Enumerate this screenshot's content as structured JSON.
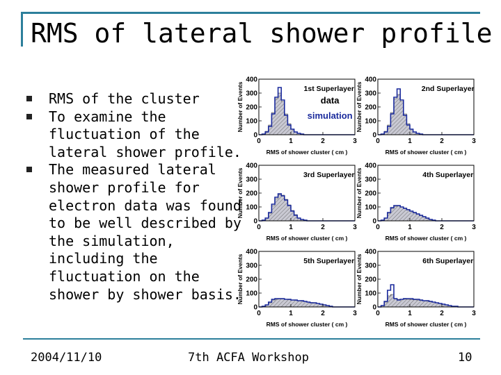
{
  "slide": {
    "title": "RMS of lateral shower profile",
    "bullets": [
      "RMS of the cluster",
      "To examine the fluctuation of the lateral shower profile.",
      "The measured lateral shower profile for electron data was found to be well described by the simulation, including the fluctuation on the shower by shower basis."
    ],
    "footer": {
      "date": "2004/11/10",
      "center": "7th ACFA Workshop",
      "page": "10"
    }
  },
  "colors": {
    "frame": "#2c7f9b",
    "data_line": "#1a2a9c",
    "simulation_label": "#1a2a9c",
    "hist_fill": "#c9c9d3"
  },
  "chart_data": {
    "type": "histogram",
    "legend": {
      "data_label": "data",
      "simulation_label": "simulation",
      "placement": "top-left panel, right side"
    },
    "xlabel": "RMS of shower cluster ( cm )",
    "ylabel": "Number of Events",
    "xlim": [
      0,
      3
    ],
    "ylim": [
      0,
      400
    ],
    "xticks": [
      "0",
      "1",
      "2",
      "3"
    ],
    "yticks": [
      "0",
      "100",
      "200",
      "300",
      "400"
    ],
    "bin_x": [
      0.0,
      0.1,
      0.2,
      0.3,
      0.4,
      0.5,
      0.6,
      0.7,
      0.8,
      0.9,
      1.0,
      1.1,
      1.2,
      1.3,
      1.4,
      1.5,
      1.6,
      1.7,
      1.8,
      1.9,
      2.0,
      2.1,
      2.2,
      2.3,
      2.4,
      2.5,
      2.6,
      2.7,
      2.8,
      2.9
    ],
    "panels": [
      {
        "name": "1st Superlayer",
        "data": [
          0,
          5,
          20,
          60,
          150,
          270,
          340,
          250,
          140,
          70,
          40,
          20,
          10,
          5,
          0,
          0,
          0,
          0,
          0,
          0,
          0,
          0,
          0,
          0,
          0,
          0,
          0,
          0,
          0,
          0
        ],
        "simulation": [
          0,
          5,
          25,
          70,
          160,
          260,
          300,
          240,
          150,
          80,
          40,
          20,
          10,
          5,
          0,
          0,
          0,
          0,
          0,
          0,
          0,
          0,
          0,
          0,
          0,
          0,
          0,
          0,
          0,
          0
        ]
      },
      {
        "name": "2nd Superlayer",
        "data": [
          0,
          5,
          20,
          60,
          150,
          270,
          330,
          250,
          140,
          70,
          40,
          20,
          10,
          5,
          0,
          0,
          0,
          0,
          0,
          0,
          0,
          0,
          0,
          0,
          0,
          0,
          0,
          0,
          0,
          0
        ],
        "simulation": [
          0,
          5,
          25,
          70,
          160,
          260,
          290,
          240,
          150,
          80,
          40,
          20,
          10,
          5,
          0,
          0,
          0,
          0,
          0,
          0,
          0,
          0,
          0,
          0,
          0,
          0,
          0,
          0,
          0,
          0
        ]
      },
      {
        "name": "3rd Superlayer",
        "data": [
          0,
          5,
          20,
          60,
          120,
          170,
          195,
          180,
          150,
          110,
          70,
          40,
          20,
          10,
          5,
          0,
          0,
          0,
          0,
          0,
          0,
          0,
          0,
          0,
          0,
          0,
          0,
          0,
          0,
          0
        ],
        "simulation": [
          0,
          5,
          20,
          55,
          110,
          160,
          190,
          185,
          155,
          115,
          75,
          45,
          20,
          10,
          5,
          0,
          0,
          0,
          0,
          0,
          0,
          0,
          0,
          0,
          0,
          0,
          0,
          0,
          0,
          0
        ]
      },
      {
        "name": "4th Superlayer",
        "data": [
          0,
          5,
          20,
          60,
          95,
          110,
          110,
          100,
          90,
          80,
          70,
          60,
          50,
          40,
          30,
          20,
          10,
          5,
          0,
          0,
          0,
          0,
          0,
          0,
          0,
          0,
          0,
          0,
          0,
          0
        ],
        "simulation": [
          0,
          5,
          20,
          55,
          90,
          105,
          108,
          100,
          92,
          82,
          70,
          58,
          48,
          38,
          28,
          18,
          10,
          5,
          0,
          0,
          0,
          0,
          0,
          0,
          0,
          0,
          0,
          0,
          0,
          0
        ]
      },
      {
        "name": "5th Superlayer",
        "data": [
          0,
          5,
          15,
          35,
          55,
          60,
          60,
          60,
          55,
          55,
          50,
          50,
          45,
          45,
          40,
          35,
          30,
          30,
          25,
          20,
          15,
          10,
          5,
          0,
          0,
          0,
          0,
          0,
          0,
          0
        ],
        "simulation": [
          0,
          5,
          15,
          30,
          50,
          55,
          58,
          58,
          55,
          52,
          50,
          48,
          45,
          42,
          40,
          36,
          32,
          28,
          24,
          20,
          15,
          10,
          5,
          0,
          0,
          0,
          0,
          0,
          0,
          0
        ]
      },
      {
        "name": "6th Superlayer",
        "data": [
          0,
          10,
          40,
          120,
          160,
          60,
          50,
          55,
          60,
          60,
          60,
          55,
          55,
          50,
          45,
          45,
          40,
          35,
          30,
          25,
          20,
          15,
          10,
          5,
          5,
          0,
          0,
          0,
          0,
          0
        ],
        "simulation": [
          0,
          10,
          35,
          80,
          90,
          60,
          55,
          55,
          56,
          55,
          54,
          52,
          50,
          48,
          45,
          42,
          38,
          34,
          30,
          25,
          20,
          15,
          10,
          5,
          5,
          0,
          0,
          0,
          0,
          0
        ]
      }
    ]
  }
}
